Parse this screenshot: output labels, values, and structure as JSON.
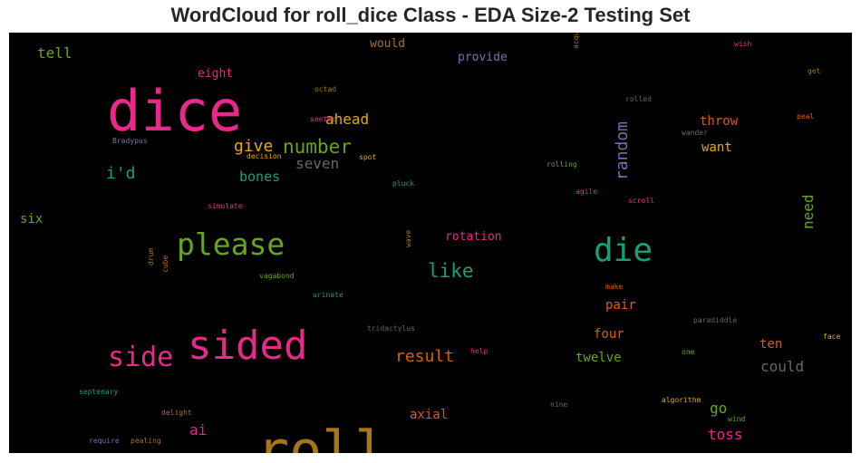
{
  "chart_data": {
    "type": "wordcloud",
    "title": "WordCloud for roll_dice Class - EDA Size-2 Testing Set",
    "background": "#000000",
    "words": [
      {
        "text": "dice",
        "color": "#e7298a",
        "weight": 1.0
      },
      {
        "text": "roll",
        "color": "#a6761d",
        "weight": 0.98
      },
      {
        "text": "sided",
        "color": "#e7298a",
        "weight": 0.74
      },
      {
        "text": "die",
        "color": "#1b9e77",
        "weight": 0.66
      },
      {
        "text": "please",
        "color": "#66a61e",
        "weight": 0.55
      },
      {
        "text": "side",
        "color": "#e7298a",
        "weight": 0.5
      },
      {
        "text": "number",
        "color": "#66a61e",
        "weight": 0.35
      },
      {
        "text": "random",
        "color": "#7570b3",
        "weight": 0.32
      },
      {
        "text": "like",
        "color": "#1b9e77",
        "weight": 0.33
      },
      {
        "text": "give",
        "color": "#e6ab02",
        "weight": 0.3
      },
      {
        "text": "i'd",
        "color": "#1b9e77",
        "weight": 0.3
      },
      {
        "text": "result",
        "color": "#d95f02",
        "weight": 0.3
      },
      {
        "text": "ahead",
        "color": "#e6ab02",
        "weight": 0.26
      },
      {
        "text": "seven",
        "color": "#666666",
        "weight": 0.26
      },
      {
        "text": "could",
        "color": "#666666",
        "weight": 0.27
      },
      {
        "text": "need",
        "color": "#66a61e",
        "weight": 0.26
      },
      {
        "text": "tell",
        "color": "#66a61e",
        "weight": 0.27
      },
      {
        "text": "ai",
        "color": "#e7298a",
        "weight": 0.27
      },
      {
        "text": "toss",
        "color": "#e7298a",
        "weight": 0.26
      },
      {
        "text": "go",
        "color": "#66a61e",
        "weight": 0.26
      },
      {
        "text": "bones",
        "color": "#1b9e77",
        "weight": 0.25
      },
      {
        "text": "axial",
        "color": "#d95f02",
        "weight": 0.24
      },
      {
        "text": "twelve",
        "color": "#66a61e",
        "weight": 0.24
      },
      {
        "text": "six",
        "color": "#66a61e",
        "weight": 0.24
      },
      {
        "text": "throw",
        "color": "#d95f02",
        "weight": 0.24
      },
      {
        "text": "four",
        "color": "#d95f02",
        "weight": 0.23
      },
      {
        "text": "want",
        "color": "#e6ab02",
        "weight": 0.23
      },
      {
        "text": "ten",
        "color": "#d95f02",
        "weight": 0.23
      },
      {
        "text": "pair",
        "color": "#d95f02",
        "weight": 0.22
      },
      {
        "text": "rotation",
        "color": "#e7298a",
        "weight": 0.22
      },
      {
        "text": "eight",
        "color": "#e7298a",
        "weight": 0.22
      },
      {
        "text": "provide",
        "color": "#7570b3",
        "weight": 0.22
      },
      {
        "text": "would",
        "color": "#a6761d",
        "weight": 0.21
      },
      {
        "text": "octad",
        "color": "#a6761d",
        "weight": 0.14
      },
      {
        "text": "seethe",
        "color": "#e7298a",
        "weight": 0.14
      },
      {
        "text": "spot",
        "color": "#e6ab02",
        "weight": 0.14
      },
      {
        "text": "decision",
        "color": "#e6ab02",
        "weight": 0.14
      },
      {
        "text": "Bradypus",
        "color": "#7570b3",
        "weight": 0.14
      },
      {
        "text": "pluck",
        "color": "#1b9e77",
        "weight": 0.14
      },
      {
        "text": "rolling",
        "color": "#66a61e",
        "weight": 0.14
      },
      {
        "text": "agile",
        "color": "#e7298a",
        "weight": 0.14
      },
      {
        "text": "scroll",
        "color": "#e7298a",
        "weight": 0.14
      },
      {
        "text": "simulate",
        "color": "#e7298a",
        "weight": 0.14
      },
      {
        "text": "wave",
        "color": "#a6761d",
        "weight": 0.13
      },
      {
        "text": "drum",
        "color": "#a6761d",
        "weight": 0.13
      },
      {
        "text": "cube",
        "color": "#a6761d",
        "weight": 0.13
      },
      {
        "text": "vagabond",
        "color": "#66a61e",
        "weight": 0.14
      },
      {
        "text": "urinate",
        "color": "#1b9e77",
        "weight": 0.14
      },
      {
        "text": "make",
        "color": "#d95f02",
        "weight": 0.13
      },
      {
        "text": "tridactylus",
        "color": "#666666",
        "weight": 0.14
      },
      {
        "text": "help",
        "color": "#e7298a",
        "weight": 0.13
      },
      {
        "text": "paradiddle",
        "color": "#666666",
        "weight": 0.14
      },
      {
        "text": "one",
        "color": "#66a61e",
        "weight": 0.13
      },
      {
        "text": "face",
        "color": "#e6ab02",
        "weight": 0.13
      },
      {
        "text": "septenary",
        "color": "#1b9e77",
        "weight": 0.14
      },
      {
        "text": "delight",
        "color": "#a6761d",
        "weight": 0.14
      },
      {
        "text": "nine",
        "color": "#666666",
        "weight": 0.13
      },
      {
        "text": "algorithm",
        "color": "#e6ab02",
        "weight": 0.14
      },
      {
        "text": "wind",
        "color": "#66a61e",
        "weight": 0.13
      },
      {
        "text": "require",
        "color": "#7570b3",
        "weight": 0.14
      },
      {
        "text": "pealing",
        "color": "#a6761d",
        "weight": 0.14
      },
      {
        "text": "acquire",
        "color": "#a6761d",
        "weight": 0.13
      },
      {
        "text": "wish",
        "color": "#e7298a",
        "weight": 0.13
      },
      {
        "text": "get",
        "color": "#a6761d",
        "weight": 0.13
      },
      {
        "text": "rolled",
        "color": "#666666",
        "weight": 0.13
      },
      {
        "text": "peal",
        "color": "#d95f02",
        "weight": 0.13
      },
      {
        "text": "wander",
        "color": "#666666",
        "weight": 0.13
      }
    ]
  }
}
